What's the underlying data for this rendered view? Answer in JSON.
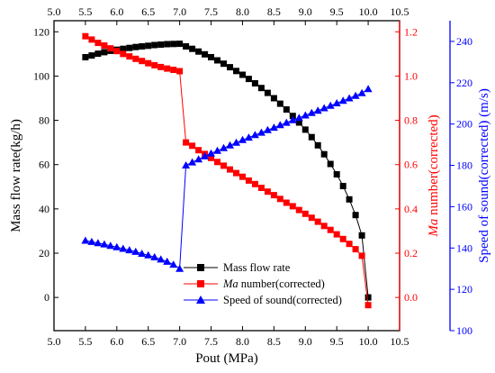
{
  "chart_data": {
    "type": "scatter",
    "xlabel": "Pout (MPa)",
    "xlim": [
      5.0,
      10.5
    ],
    "x_ticks": [
      "5.0",
      "5.5",
      "6.0",
      "6.5",
      "7.0",
      "7.5",
      "8.0",
      "8.5",
      "9.0",
      "9.5",
      "10.0",
      "10.5"
    ],
    "left_axis": {
      "label": "Mass flow rate(kg/h)",
      "ylim": [
        -15,
        125
      ],
      "ticks": [
        "0",
        "20",
        "40",
        "60",
        "80",
        "100",
        "120"
      ],
      "color": "#000000"
    },
    "right_axis_1": {
      "label_italic": "Ma",
      "label_rest": " number(corrected)",
      "ylim": [
        -0.15,
        1.25
      ],
      "ticks": [
        "0.0",
        "0.2",
        "0.4",
        "0.6",
        "0.8",
        "1.0",
        "1.2"
      ],
      "color": "#ff0000"
    },
    "right_axis_2": {
      "label": "Speed of sound(corrected) (m/s)",
      "ylim": [
        100,
        250
      ],
      "ticks": [
        "100",
        "120",
        "140",
        "160",
        "180",
        "200",
        "220",
        "240"
      ],
      "color": "#0000ff"
    },
    "legend": {
      "placement": "bottom-right",
      "entries": [
        {
          "text": "Mass flow rate",
          "text_italic": "",
          "text_rest": ""
        },
        {
          "text": "",
          "text_italic": "Ma",
          "text_rest": " number(corrected)"
        },
        {
          "text": "Speed of sound(corrected)",
          "text_italic": "",
          "text_rest": ""
        }
      ]
    },
    "series": [
      {
        "key": "mass",
        "marker": "square",
        "color": "#000000",
        "axis": "left",
        "x": [
          5.5,
          5.6,
          5.7,
          5.8,
          5.9,
          6.0,
          6.1,
          6.2,
          6.3,
          6.4,
          6.5,
          6.6,
          6.7,
          6.8,
          6.9,
          7.0,
          7.1,
          7.2,
          7.3,
          7.4,
          7.5,
          7.6,
          7.7,
          7.8,
          7.9,
          8.0,
          8.1,
          8.2,
          8.3,
          8.4,
          8.5,
          8.6,
          8.7,
          8.8,
          8.9,
          9.0,
          9.1,
          9.2,
          9.3,
          9.4,
          9.5,
          9.6,
          9.7,
          9.8,
          9.9,
          10.0
        ],
        "y": [
          108.5,
          109.3,
          110.1,
          110.8,
          111.4,
          111.9,
          112.3,
          112.7,
          113.1,
          113.4,
          113.7,
          114.0,
          114.2,
          114.4,
          114.5,
          114.6,
          113.4,
          112.3,
          111.1,
          109.8,
          108.5,
          107.1,
          105.6,
          104.0,
          102.3,
          100.6,
          98.7,
          96.7,
          94.6,
          92.4,
          90.0,
          87.5,
          84.9,
          82.0,
          79.0,
          75.8,
          72.4,
          68.7,
          64.7,
          60.3,
          55.6,
          50.3,
          44.3,
          37.2,
          28.0,
          0.0
        ]
      },
      {
        "key": "mach",
        "marker": "square",
        "color": "#ff0000",
        "axis": "right1",
        "x": [
          5.5,
          5.6,
          5.7,
          5.8,
          5.9,
          6.0,
          6.1,
          6.2,
          6.3,
          6.4,
          6.5,
          6.6,
          6.7,
          6.8,
          6.9,
          7.0,
          7.1,
          7.2,
          7.3,
          7.4,
          7.5,
          7.6,
          7.7,
          7.8,
          7.9,
          8.0,
          8.1,
          8.2,
          8.3,
          8.4,
          8.5,
          8.6,
          8.7,
          8.8,
          8.9,
          9.0,
          9.1,
          9.2,
          9.3,
          9.4,
          9.5,
          9.6,
          9.7,
          9.8,
          9.9,
          10.0
        ],
        "y": [
          1.18,
          1.165,
          1.15,
          1.138,
          1.125,
          1.113,
          1.1,
          1.089,
          1.078,
          1.068,
          1.058,
          1.049,
          1.041,
          1.034,
          1.028,
          1.022,
          0.7,
          0.685,
          0.665,
          0.648,
          0.63,
          0.612,
          0.595,
          0.578,
          0.562,
          0.545,
          0.528,
          0.512,
          0.495,
          0.478,
          0.462,
          0.445,
          0.428,
          0.412,
          0.395,
          0.378,
          0.36,
          0.342,
          0.323,
          0.305,
          0.285,
          0.264,
          0.242,
          0.218,
          0.188,
          -0.035
        ]
      },
      {
        "key": "sound",
        "marker": "triangle",
        "color": "#0000ff",
        "axis": "right2",
        "x": [
          5.5,
          5.6,
          5.7,
          5.8,
          5.9,
          6.0,
          6.1,
          6.2,
          6.3,
          6.4,
          6.5,
          6.6,
          6.7,
          6.8,
          6.9,
          7.0,
          7.1,
          7.2,
          7.3,
          7.4,
          7.5,
          7.6,
          7.7,
          7.8,
          7.9,
          8.0,
          8.1,
          8.2,
          8.3,
          8.4,
          8.5,
          8.6,
          8.7,
          8.8,
          8.9,
          9.0,
          9.1,
          9.2,
          9.3,
          9.4,
          9.5,
          9.6,
          9.7,
          9.8,
          9.9,
          10.0
        ],
        "y": [
          143.6,
          143.0,
          142.4,
          141.8,
          141.1,
          140.4,
          139.7,
          139.0,
          138.2,
          137.3,
          136.5,
          135.6,
          134.5,
          133.4,
          132.0,
          130.0,
          180.0,
          181.5,
          183.0,
          184.4,
          185.8,
          187.1,
          188.4,
          189.7,
          191.0,
          192.3,
          193.5,
          194.7,
          195.9,
          197.1,
          198.3,
          199.5,
          200.7,
          201.9,
          203.0,
          204.2,
          205.4,
          206.5,
          207.7,
          208.9,
          210.1,
          211.3,
          212.5,
          213.7,
          215.0,
          217.0
        ]
      }
    ],
    "colors": {
      "mass": "#000000",
      "mach": "#ff0000",
      "sound": "#0000ff"
    }
  }
}
